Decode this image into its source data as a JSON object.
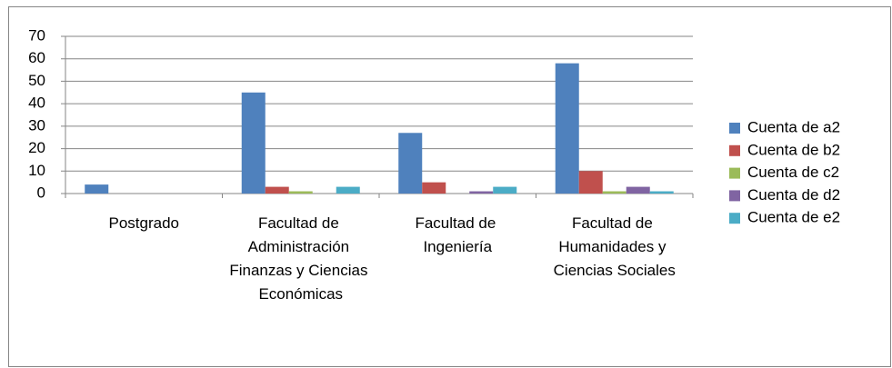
{
  "chart_data": {
    "type": "bar",
    "categories": [
      "Postgrado",
      "Facultad de Administración Finanzas y Ciencias Económicas",
      "Facultad de Ingeniería",
      "Facultad de Humanidades y Ciencias Sociales"
    ],
    "series": [
      {
        "name": "Cuenta de a2",
        "color": "#4f81bd",
        "values": [
          4,
          45,
          27,
          58
        ]
      },
      {
        "name": "Cuenta de b2",
        "color": "#c0504d",
        "values": [
          0,
          3,
          5,
          10
        ]
      },
      {
        "name": "Cuenta de c2",
        "color": "#9bbb59",
        "values": [
          0,
          1,
          0,
          1
        ]
      },
      {
        "name": "Cuenta de d2",
        "color": "#8064a2",
        "values": [
          0,
          0,
          1,
          3
        ]
      },
      {
        "name": "Cuenta de e2",
        "color": "#4bacc6",
        "values": [
          0,
          3,
          3,
          1
        ]
      }
    ],
    "ylim": [
      0,
      70
    ],
    "yticks": [
      0,
      10,
      20,
      30,
      40,
      50,
      60,
      70
    ],
    "grid": true,
    "legend": "right"
  }
}
